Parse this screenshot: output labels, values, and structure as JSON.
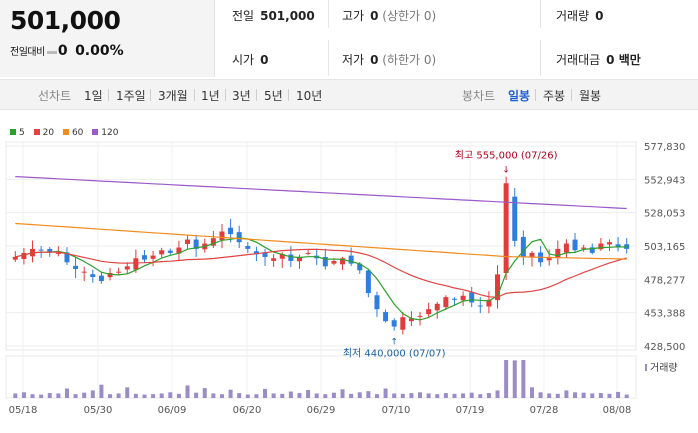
{
  "summary": {
    "price": "501,000",
    "change_label": "전일대비",
    "change_value": "0",
    "change_pct": "0.00%"
  },
  "stats": {
    "prev_close_label": "전일",
    "prev_close": "501,000",
    "high_label": "고가",
    "high": "0",
    "high_note": "(상한가 0)",
    "volume_label": "거래량",
    "volume": "0",
    "open_label": "시가",
    "open": "0",
    "low_label": "저가",
    "low": "0",
    "low_note": "(하한가 0)",
    "amount_label": "거래대금",
    "amount": "0 백만"
  },
  "tabs": {
    "line_label": "선차트",
    "line_periods": [
      "1일",
      "1주일",
      "3개월",
      "1년",
      "3년",
      "5년",
      "10년"
    ],
    "candle_label": "봉차트",
    "candle_periods": [
      "일봉",
      "주봉",
      "월봉"
    ],
    "active": "일봉"
  },
  "legend": [
    {
      "label": "5",
      "color": "#2ca02c"
    },
    {
      "label": "20",
      "color": "#e04343"
    },
    {
      "label": "60",
      "color": "#f28c1f"
    },
    {
      "label": "120",
      "color": "#9b59c9"
    }
  ],
  "colors": {
    "up": "#e23b3b",
    "down": "#2f7ddf",
    "max_note": "#b0001a",
    "min_note": "#1a5fa8",
    "volume": "#9b8bc7"
  },
  "chart_data": {
    "type": "candlestick",
    "y_ticks": [
      "577,830",
      "552,943",
      "528,053",
      "503,165",
      "478,277",
      "453,388",
      "428,500"
    ],
    "ylim": [
      428500,
      577830
    ],
    "x_ticks": [
      "05/18",
      "05/30",
      "06/09",
      "06/20",
      "06/29",
      "07/10",
      "07/19",
      "07/28",
      "08/08"
    ],
    "high_note": "최고 555,000 (07/26)",
    "low_note": "최저 440,000 (07/07)",
    "volume_label": "거래량",
    "closes": [
      495000,
      498000,
      501000,
      500000,
      499000,
      498000,
      491000,
      486000,
      484000,
      480000,
      477000,
      483000,
      484000,
      488000,
      494000,
      493000,
      496000,
      500000,
      498000,
      502000,
      508000,
      501000,
      505000,
      509000,
      514000,
      512000,
      506000,
      501000,
      497000,
      495000,
      494000,
      497000,
      492000,
      495000,
      498000,
      494000,
      488000,
      492000,
      494000,
      490000,
      485000,
      468000,
      456000,
      447000,
      443000,
      450000,
      449000,
      451000,
      456000,
      460000,
      465000,
      463000,
      466000,
      461000,
      458000,
      463000,
      482000,
      550000,
      507000,
      495000,
      498000,
      491000,
      495000,
      501000,
      505000,
      500000,
      502000,
      498000,
      505000,
      506000,
      502000,
      501000
    ],
    "volume": [
      0.12,
      0.15,
      0.1,
      0.09,
      0.13,
      0.12,
      0.25,
      0.1,
      0.14,
      0.2,
      0.35,
      0.1,
      0.12,
      0.28,
      0.11,
      0.09,
      0.1,
      0.12,
      0.15,
      0.11,
      0.33,
      0.14,
      0.26,
      0.12,
      0.1,
      0.22,
      0.13,
      0.09,
      0.1,
      0.24,
      0.12,
      0.11,
      0.17,
      0.13,
      0.21,
      0.12,
      0.1,
      0.14,
      0.23,
      0.11,
      0.15,
      0.18,
      0.1,
      0.25,
      0.12,
      0.11,
      0.13,
      0.15,
      0.12,
      0.1,
      0.13,
      0.11,
      0.12,
      0.14,
      0.1,
      0.13,
      0.2,
      1.0,
      0.99,
      1.0,
      0.28,
      0.15,
      0.12,
      0.11,
      0.2,
      0.15,
      0.14,
      0.12,
      0.13,
      0.11,
      0.16,
      0.09
    ]
  }
}
